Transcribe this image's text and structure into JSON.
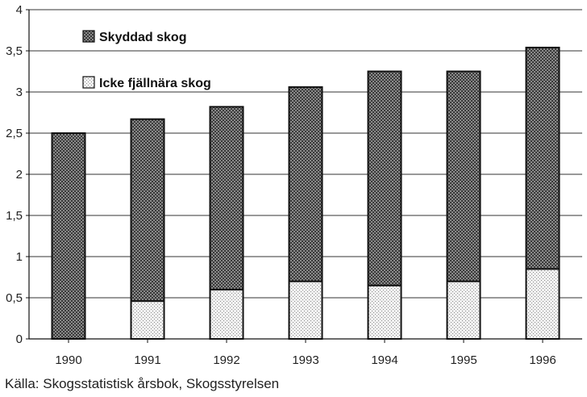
{
  "chart_data": {
    "type": "bar",
    "stacked": true,
    "categories": [
      "1990",
      "1991",
      "1992",
      "1993",
      "1994",
      "1995",
      "1996"
    ],
    "series": [
      {
        "name": "Icke fjällnära skog",
        "values": [
          0,
          0.46,
          0.6,
          0.7,
          0.65,
          0.7,
          0.85
        ],
        "pattern": "light-stipple"
      },
      {
        "name": "Skyddad skog",
        "values": [
          2.5,
          2.21,
          2.22,
          2.36,
          2.6,
          2.55,
          2.69
        ],
        "pattern": "dark-crosshatch"
      }
    ],
    "y_ticks": [
      "0",
      "0,5",
      "1",
      "1,5",
      "2",
      "2,5",
      "3",
      "3,5",
      "4"
    ],
    "y_tick_values": [
      0,
      0.5,
      1,
      1.5,
      2,
      2.5,
      3,
      3.5,
      4
    ],
    "ylim": [
      0,
      4
    ],
    "grid": true,
    "legend_position": "top-left",
    "colors": {
      "dark_fill": "#5a5a5a",
      "light_fill": "#e6e6e6",
      "outline": "#111111"
    }
  },
  "source_text": "Källa: Skogsstatistisk årsbok, Skogsstyrelsen"
}
